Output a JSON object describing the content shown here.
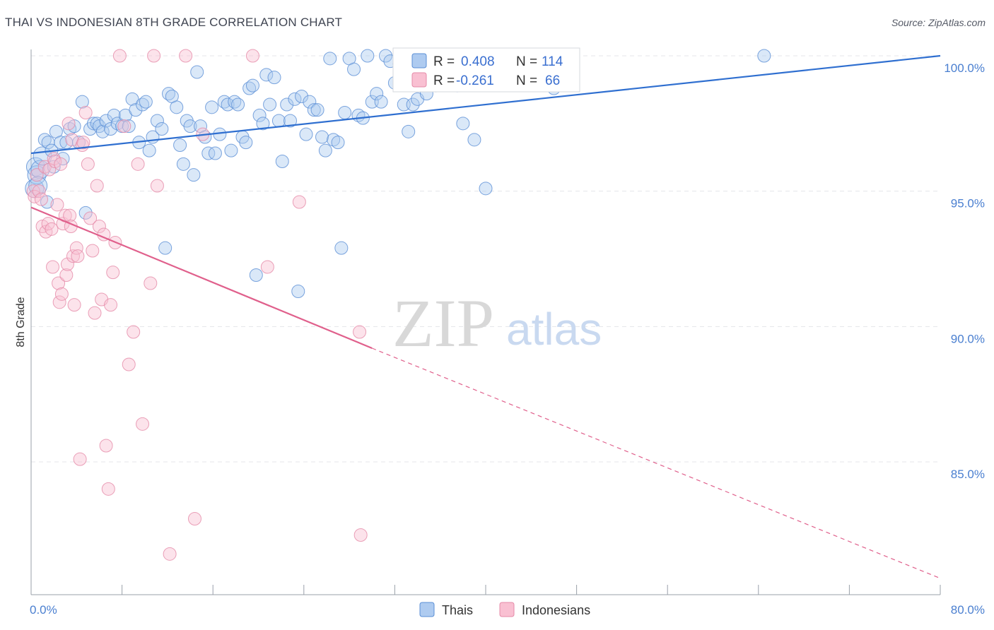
{
  "header": {
    "title": "THAI VS INDONESIAN 8TH GRADE CORRELATION CHART",
    "source": "Source: ZipAtlas.com"
  },
  "legend_box": {
    "r_label": "R =",
    "n_label": "N =",
    "thais_r": "0.408",
    "thais_n": "114",
    "indonesians_r": "-0.261",
    "indonesians_n": "66"
  },
  "bottom_legend": {
    "thais": "Thais",
    "indonesians": "Indonesians"
  },
  "watermark": {
    "zip": "ZIP",
    "atlas": "atlas"
  },
  "colors": {
    "thais_fill": "#aecbf0",
    "thais_stroke": "#5b8fd6",
    "thais_line": "#2f6fd0",
    "indonesians_fill": "#f9c0d2",
    "indonesians_stroke": "#e58aa8",
    "indonesians_line": "#e0608c",
    "tick_label": "#4a7fd0"
  },
  "chart_data": {
    "type": "scatter",
    "title": "THAI VS INDONESIAN 8TH GRADE CORRELATION CHART",
    "xlabel": "",
    "ylabel": "8th Grade",
    "xlim": [
      0,
      80
    ],
    "ylim": [
      80.5,
      100.8
    ],
    "x_tick_labels": [
      "0.0%",
      "80.0%"
    ],
    "y_ticks": [
      85,
      90,
      95,
      100
    ],
    "y_tick_labels": [
      "85.0%",
      "90.0%",
      "95.0%",
      "100.0%"
    ],
    "grid": true,
    "legend_position": "top-center",
    "series": [
      {
        "name": "Thais",
        "r": 0.408,
        "n": 114,
        "trend": {
          "x0": 0,
          "y0": 96.4,
          "x1": 80,
          "y1": 100.0
        },
        "points": [
          [
            0.3,
            95.1
          ],
          [
            0.4,
            95.9
          ],
          [
            0.5,
            95.6
          ],
          [
            0.8,
            95.8
          ],
          [
            1.0,
            96.3
          ],
          [
            1.2,
            96.9
          ],
          [
            1.5,
            96.8
          ],
          [
            1.8,
            96.5
          ],
          [
            2.0,
            95.9
          ],
          [
            2.2,
            97.2
          ],
          [
            2.6,
            96.8
          ],
          [
            2.8,
            96.2
          ],
          [
            3.1,
            96.8
          ],
          [
            3.4,
            97.3
          ],
          [
            3.8,
            97.4
          ],
          [
            4.2,
            96.8
          ],
          [
            4.5,
            98.3
          ],
          [
            4.8,
            94.2
          ],
          [
            5.2,
            97.3
          ],
          [
            5.5,
            97.5
          ],
          [
            5.8,
            97.5
          ],
          [
            6.0,
            97.4
          ],
          [
            6.3,
            97.2
          ],
          [
            6.6,
            97.6
          ],
          [
            7.0,
            97.3
          ],
          [
            7.3,
            97.8
          ],
          [
            7.6,
            97.5
          ],
          [
            8.0,
            97.4
          ],
          [
            8.3,
            97.8
          ],
          [
            8.6,
            97.4
          ],
          [
            8.9,
            98.4
          ],
          [
            9.2,
            98.0
          ],
          [
            9.5,
            96.8
          ],
          [
            9.8,
            98.2
          ],
          [
            10.1,
            98.3
          ],
          [
            10.4,
            96.5
          ],
          [
            10.7,
            97.0
          ],
          [
            11.1,
            97.6
          ],
          [
            11.5,
            97.3
          ],
          [
            11.8,
            92.9
          ],
          [
            12.1,
            98.6
          ],
          [
            12.4,
            98.5
          ],
          [
            12.8,
            98.1
          ],
          [
            13.1,
            96.7
          ],
          [
            13.4,
            96.0
          ],
          [
            13.7,
            97.6
          ],
          [
            14.0,
            97.4
          ],
          [
            14.3,
            95.6
          ],
          [
            14.6,
            99.4
          ],
          [
            14.9,
            97.4
          ],
          [
            15.3,
            97.0
          ],
          [
            15.6,
            96.4
          ],
          [
            15.9,
            98.1
          ],
          [
            16.2,
            96.4
          ],
          [
            16.6,
            97.1
          ],
          [
            17.0,
            98.3
          ],
          [
            17.3,
            98.2
          ],
          [
            17.6,
            96.5
          ],
          [
            17.9,
            98.3
          ],
          [
            18.2,
            98.2
          ],
          [
            18.6,
            97.0
          ],
          [
            18.9,
            96.8
          ],
          [
            19.2,
            98.8
          ],
          [
            19.5,
            98.9
          ],
          [
            19.8,
            91.9
          ],
          [
            20.1,
            97.8
          ],
          [
            20.4,
            97.5
          ],
          [
            20.7,
            99.3
          ],
          [
            21.0,
            98.2
          ],
          [
            21.4,
            99.2
          ],
          [
            21.8,
            97.6
          ],
          [
            22.1,
            96.1
          ],
          [
            22.5,
            98.2
          ],
          [
            22.8,
            97.6
          ],
          [
            23.2,
            98.4
          ],
          [
            23.5,
            91.3
          ],
          [
            23.8,
            98.5
          ],
          [
            24.2,
            97.1
          ],
          [
            24.5,
            98.3
          ],
          [
            24.9,
            98.0
          ],
          [
            25.2,
            98.0
          ],
          [
            25.6,
            97.0
          ],
          [
            25.9,
            96.5
          ],
          [
            26.3,
            99.9
          ],
          [
            26.6,
            96.9
          ],
          [
            27.0,
            96.8
          ],
          [
            27.3,
            92.9
          ],
          [
            27.6,
            97.9
          ],
          [
            28.0,
            99.9
          ],
          [
            28.4,
            99.5
          ],
          [
            28.8,
            97.8
          ],
          [
            29.2,
            97.7
          ],
          [
            29.6,
            100.0
          ],
          [
            30.0,
            98.3
          ],
          [
            30.4,
            98.6
          ],
          [
            30.8,
            98.3
          ],
          [
            31.2,
            100.0
          ],
          [
            31.6,
            99.8
          ],
          [
            32.0,
            99.0
          ],
          [
            32.4,
            99.7
          ],
          [
            32.8,
            98.2
          ],
          [
            33.2,
            97.2
          ],
          [
            33.6,
            98.2
          ],
          [
            34.0,
            98.4
          ],
          [
            34.4,
            99.7
          ],
          [
            34.8,
            98.6
          ],
          [
            35.2,
            99.2
          ],
          [
            35.6,
            98.9
          ],
          [
            36.0,
            99.1
          ],
          [
            36.5,
            100.0
          ],
          [
            37.0,
            99.1
          ],
          [
            37.5,
            98.9
          ],
          [
            38.0,
            97.5
          ],
          [
            39.0,
            96.9
          ],
          [
            40.0,
            95.1
          ],
          [
            44.0,
            99.6
          ],
          [
            46.0,
            98.8
          ],
          [
            64.5,
            100.0
          ],
          [
            0.6,
            95.2
          ],
          [
            1.4,
            94.6
          ]
        ]
      },
      {
        "name": "Indonesians",
        "r": -0.261,
        "n": 66,
        "trend": {
          "x0": 0,
          "y0": 94.4,
          "x1": 30,
          "y1": 89.2,
          "dash_x1": 80,
          "dash_y1": 80.7
        },
        "points": [
          [
            0.2,
            95.0
          ],
          [
            0.3,
            94.8
          ],
          [
            0.5,
            95.6
          ],
          [
            0.7,
            95.0
          ],
          [
            0.9,
            94.7
          ],
          [
            1.0,
            93.7
          ],
          [
            1.2,
            95.9
          ],
          [
            1.3,
            93.5
          ],
          [
            1.5,
            93.8
          ],
          [
            1.6,
            95.8
          ],
          [
            1.8,
            93.6
          ],
          [
            1.9,
            92.2
          ],
          [
            2.0,
            96.2
          ],
          [
            2.1,
            96.1
          ],
          [
            2.3,
            94.5
          ],
          [
            2.4,
            91.6
          ],
          [
            2.5,
            90.9
          ],
          [
            2.6,
            96.0
          ],
          [
            2.7,
            91.2
          ],
          [
            2.8,
            93.8
          ],
          [
            3.0,
            94.1
          ],
          [
            3.1,
            91.9
          ],
          [
            3.2,
            92.3
          ],
          [
            3.3,
            97.5
          ],
          [
            3.4,
            94.1
          ],
          [
            3.5,
            93.7
          ],
          [
            3.6,
            96.9
          ],
          [
            3.7,
            92.6
          ],
          [
            3.8,
            90.8
          ],
          [
            4.0,
            92.9
          ],
          [
            4.1,
            92.6
          ],
          [
            4.3,
            85.1
          ],
          [
            4.5,
            96.7
          ],
          [
            4.6,
            96.8
          ],
          [
            4.8,
            97.9
          ],
          [
            5.0,
            96.0
          ],
          [
            5.2,
            94.0
          ],
          [
            5.4,
            92.8
          ],
          [
            5.6,
            90.5
          ],
          [
            5.8,
            95.2
          ],
          [
            6.0,
            93.7
          ],
          [
            6.2,
            91.0
          ],
          [
            6.4,
            93.4
          ],
          [
            6.6,
            85.6
          ],
          [
            6.8,
            84.0
          ],
          [
            7.0,
            90.8
          ],
          [
            7.2,
            92.0
          ],
          [
            7.4,
            93.1
          ],
          [
            7.8,
            100.0
          ],
          [
            8.2,
            97.4
          ],
          [
            8.6,
            88.6
          ],
          [
            9.0,
            89.8
          ],
          [
            9.4,
            96.0
          ],
          [
            9.8,
            86.4
          ],
          [
            10.5,
            91.6
          ],
          [
            10.8,
            100.0
          ],
          [
            11.1,
            95.2
          ],
          [
            12.2,
            81.6
          ],
          [
            13.6,
            100.0
          ],
          [
            14.4,
            82.9
          ],
          [
            15.1,
            97.1
          ],
          [
            19.5,
            100.0
          ],
          [
            20.8,
            92.2
          ],
          [
            23.6,
            94.6
          ],
          [
            28.9,
            89.8
          ],
          [
            29.0,
            82.3
          ]
        ]
      }
    ]
  }
}
